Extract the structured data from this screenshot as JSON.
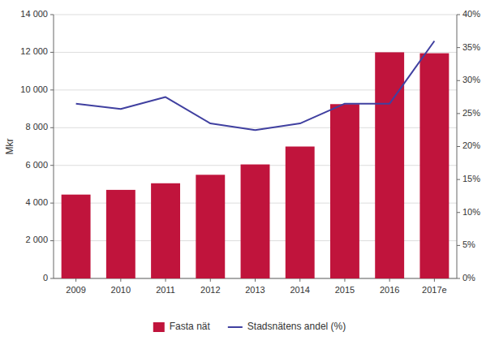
{
  "chart_data": {
    "type": "bar",
    "ylabel": "Mkr",
    "categories": [
      "2009",
      "2010",
      "2011",
      "2012",
      "2013",
      "2014",
      "2015",
      "2016",
      "2017e"
    ],
    "series": [
      {
        "name": "Fasta nät",
        "type": "bar",
        "color": "#c0143c",
        "values": [
          4450,
          4700,
          5050,
          5500,
          6050,
          7000,
          9250,
          12000,
          11950
        ]
      },
      {
        "name": "Stadsnätens andel (%)",
        "type": "line",
        "axis": "y2",
        "color": "#4040a0",
        "values": [
          26.5,
          25.7,
          27.5,
          23.5,
          22.5,
          23.5,
          26.5,
          26.5,
          36.0
        ]
      }
    ],
    "ylim": [
      0,
      14000
    ],
    "yticks": [
      0,
      {
        "value": 2000,
        "label": "2 000"
      },
      {
        "value": 4000,
        "label": "4 000"
      },
      {
        "value": 6000,
        "label": "6 000"
      },
      {
        "value": 8000,
        "label": "8 000"
      },
      {
        "value": 10000,
        "label": "10 000"
      },
      {
        "value": 12000,
        "label": "12 000"
      },
      {
        "value": 14000,
        "label": "14 000"
      }
    ],
    "y2lim": [
      0,
      40
    ],
    "y2ticks": [
      {
        "value": 0,
        "label": "0%"
      },
      {
        "value": 5,
        "label": "5%"
      },
      {
        "value": 10,
        "label": "10%"
      },
      {
        "value": 15,
        "label": "15%"
      },
      {
        "value": 20,
        "label": "20%"
      },
      {
        "value": 25,
        "label": "25%"
      },
      {
        "value": 30,
        "label": "30%"
      },
      {
        "value": 35,
        "label": "35%"
      },
      {
        "value": 40,
        "label": "40%"
      }
    ],
    "grid": true,
    "legend": "bottom"
  }
}
